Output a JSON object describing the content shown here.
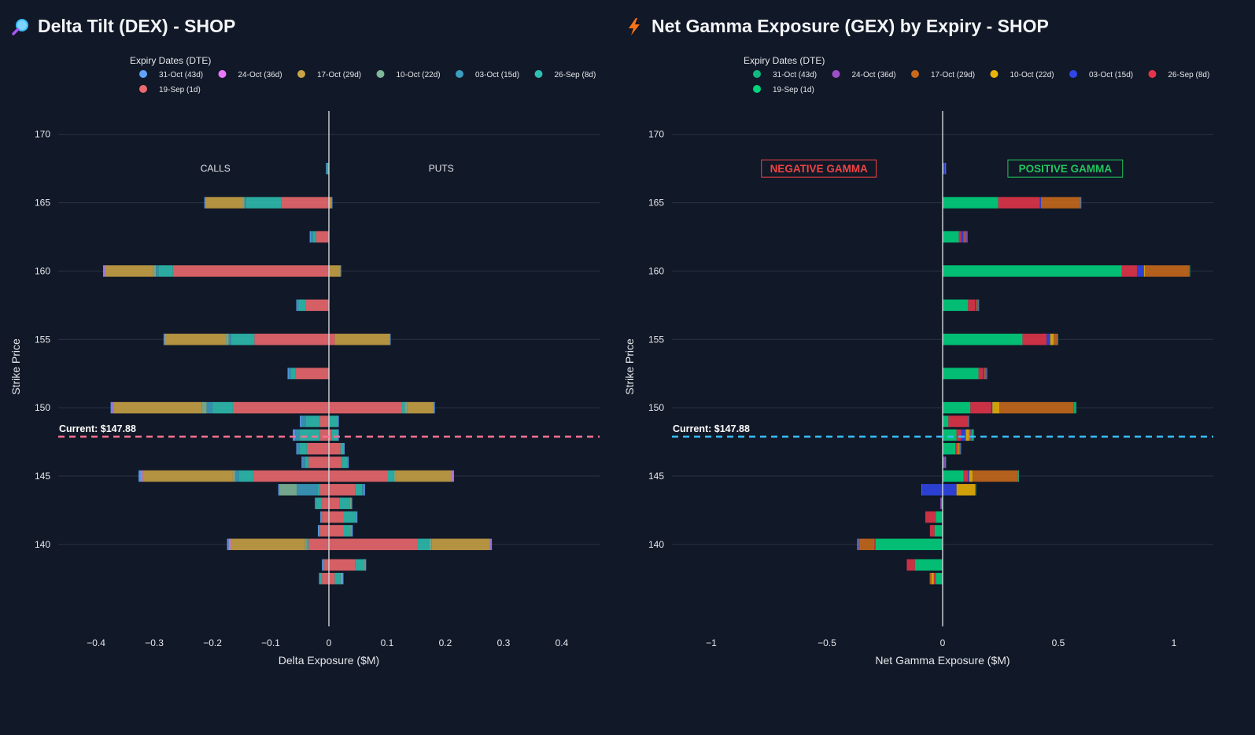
{
  "background": "#111827",
  "chart_data": [
    {
      "type": "bar",
      "orientation": "horizontal",
      "barmode": "relative",
      "title": "Delta Tilt (DEX) - SHOP",
      "title_icon": "magnifier-icon",
      "xlabel": "Delta Exposure ($M)",
      "ylabel": "Strike Price",
      "xlim": [
        -0.465,
        0.465
      ],
      "ylim": [
        134,
        172
      ],
      "x_ticks": [
        -0.4,
        -0.3,
        -0.2,
        -0.1,
        0,
        0.1,
        0.2,
        0.3,
        0.4
      ],
      "x_tick_labels": [
        "−0.4",
        "−0.3",
        "−0.2",
        "−0.1",
        "0",
        "0.1",
        "0.2",
        "0.3",
        "0.4"
      ],
      "y_ticks": [
        140,
        145,
        150,
        155,
        160,
        165,
        170
      ],
      "legend_title": "Expiry Dates (DTE)",
      "legend_placement": "top",
      "annotations": [
        {
          "text": "CALLS",
          "x": -0.195,
          "y": 167.5
        },
        {
          "text": "PUTS",
          "x": 0.193,
          "y": 167.5
        }
      ],
      "current_price": {
        "value": 147.88,
        "label": "Current: $147.88",
        "color": "#f87191"
      },
      "strikes": [
        137.5,
        138.5,
        140,
        141,
        142,
        143,
        144,
        145,
        146,
        147,
        148,
        149,
        150,
        152.5,
        155,
        157.5,
        160,
        162.5,
        165,
        167.5
      ],
      "series": [
        {
          "name": "19-Sep (1d)",
          "color": "#ef6a6f",
          "neg": [
            -0.012,
            -0.008,
            -0.035,
            -0.015,
            -0.012,
            -0.012,
            -0.015,
            -0.13,
            -0.035,
            -0.038,
            -0.015,
            -0.015,
            -0.165,
            -0.058,
            -0.128,
            -0.04,
            -0.268,
            -0.022,
            -0.082,
            0
          ],
          "pos": [
            0.01,
            0.045,
            0.152,
            0.025,
            0.025,
            0.018,
            0.045,
            0.1,
            0.022,
            0.02,
            0.005,
            0,
            0.125,
            0,
            0.01,
            0,
            0,
            0,
            0,
            0
          ]
        },
        {
          "name": "26-Sep (8d)",
          "color": "#2fbfb1",
          "neg": [
            -0.003,
            -0.002,
            -0.003,
            -0.002,
            -0.002,
            -0.01,
            -0.005,
            -0.025,
            -0.006,
            -0.012,
            -0.035,
            -0.025,
            -0.035,
            -0.008,
            -0.04,
            -0.012,
            -0.025,
            -0.006,
            -0.06,
            -0.004
          ],
          "pos": [
            0.01,
            0.015,
            0.02,
            0.012,
            0.022,
            0.018,
            0.012,
            0.012,
            0.01,
            0.005,
            0.01,
            0.015,
            0.005,
            0,
            0,
            0,
            0,
            0,
            0,
            0
          ]
        },
        {
          "name": "03-Oct (15d)",
          "color": "#3b9dc0",
          "neg": [
            0,
            0,
            0,
            0,
            0,
            0,
            -0.035,
            -0.006,
            -0.004,
            -0.004,
            -0.008,
            -0.008,
            -0.01,
            -0.003,
            -0.004,
            -0.002,
            -0.004,
            -0.003,
            -0.003,
            0
          ],
          "pos": [
            0,
            0,
            0,
            0,
            0,
            0,
            0.003,
            0,
            0,
            0,
            0,
            0,
            0,
            0,
            0,
            0,
            0,
            0,
            0,
            0
          ]
        },
        {
          "name": "10-Oct (22d)",
          "color": "#7fb89a",
          "neg": [
            0,
            0,
            -0.003,
            0,
            0,
            0,
            -0.03,
            -0.004,
            0,
            0,
            0,
            0,
            -0.008,
            0,
            -0.005,
            0,
            -0.005,
            0,
            -0.003,
            0
          ],
          "pos": [
            0.003,
            0.002,
            0.004,
            0.002,
            0,
            0.002,
            0,
            0.003,
            0,
            0,
            0,
            0,
            0.005,
            0,
            0,
            0,
            0,
            0,
            0,
            0
          ]
        },
        {
          "name": "17-Oct (29d)",
          "color": "#c9a346",
          "neg": [
            0,
            0,
            -0.128,
            0,
            0,
            0,
            0,
            -0.155,
            0,
            0,
            0,
            0,
            -0.152,
            0,
            -0.105,
            0,
            -0.082,
            0,
            -0.063,
            0
          ],
          "pos": [
            0,
            0,
            0.1,
            0,
            0,
            0,
            0,
            0.095,
            0,
            0,
            0,
            0,
            0.045,
            0,
            0.095,
            0,
            0.02,
            0,
            0.005,
            0
          ]
        },
        {
          "name": "24-Oct (36d)",
          "color": "#e879f9",
          "neg": [
            0,
            0,
            -0.003,
            0,
            0,
            0,
            0,
            -0.003,
            0,
            0,
            0,
            0,
            -0.002,
            0,
            0,
            0,
            -0.002,
            0,
            -0.001,
            0
          ],
          "pos": [
            0,
            0,
            0.002,
            0,
            0,
            0,
            0,
            0.003,
            0,
            0,
            0,
            0,
            0,
            0,
            0,
            0,
            0,
            0,
            0,
            0
          ]
        },
        {
          "name": "31-Oct (43d)",
          "color": "#60a5fa",
          "neg": [
            -0.002,
            -0.002,
            -0.003,
            -0.002,
            -0.001,
            -0.002,
            -0.002,
            -0.004,
            -0.002,
            -0.002,
            -0.004,
            -0.002,
            -0.003,
            -0.002,
            -0.002,
            -0.002,
            -0.002,
            -0.002,
            -0.002,
            -0.001
          ],
          "pos": [
            0.002,
            0.002,
            0.002,
            0.002,
            0.002,
            0.002,
            0.002,
            0.002,
            0.002,
            0.002,
            0.002,
            0.002,
            0.002,
            0.001,
            0.001,
            0,
            0.001,
            0,
            0.001,
            0
          ]
        }
      ]
    },
    {
      "type": "bar",
      "orientation": "horizontal",
      "barmode": "relative",
      "title": "Net Gamma Exposure (GEX) by Expiry - SHOP",
      "title_icon": "lightning-icon",
      "xlabel": "Net Gamma Exposure ($M)",
      "ylabel": "Strike Price",
      "xlim": [
        -1.17,
        1.17
      ],
      "ylim": [
        134,
        172
      ],
      "x_ticks": [
        -1,
        -0.5,
        0,
        0.5,
        1
      ],
      "x_tick_labels": [
        "−1",
        "−0.5",
        "0",
        "0.5",
        "1"
      ],
      "y_ticks": [
        140,
        145,
        150,
        155,
        160,
        165,
        170
      ],
      "legend_title": "Expiry Dates (DTE)",
      "legend_placement": "top",
      "annotations": [
        {
          "text": "NEGATIVE GAMMA",
          "x": -0.535,
          "y": 167.5,
          "color": "#ef4444"
        },
        {
          "text": "POSITIVE GAMMA",
          "x": 0.53,
          "y": 167.5,
          "color": "#22c55e"
        }
      ],
      "current_price": {
        "value": 147.88,
        "label": "Current: $147.88",
        "color": "#38bdf8"
      },
      "strikes": [
        137.5,
        138.5,
        140,
        141,
        142,
        143,
        144,
        145,
        146,
        147,
        148,
        149,
        150,
        152.5,
        155,
        157.5,
        160,
        162.5,
        165,
        167.5
      ],
      "series": [
        {
          "name": "19-Sep (1d)",
          "color": "#00d47e",
          "neg": [
            -0.03,
            -0.12,
            -0.29,
            -0.035,
            -0.03,
            -0.005,
            0,
            0,
            0,
            0,
            0,
            0,
            0,
            0,
            0,
            0,
            0,
            0,
            0,
            0
          ],
          "pos": [
            0,
            0,
            0,
            0,
            0,
            0,
            0,
            0.09,
            0.005,
            0.055,
            0.06,
            0.025,
            0.12,
            0.155,
            0.345,
            0.11,
            0.775,
            0.07,
            0.24,
            0.005
          ]
        },
        {
          "name": "26-Sep (8d)",
          "color": "#e5344a",
          "neg": [
            -0.008,
            -0.035,
            -0.005,
            -0.02,
            -0.045,
            0,
            0,
            0,
            0,
            0,
            0,
            0,
            0,
            0,
            0,
            0,
            0,
            0,
            0,
            0
          ],
          "pos": [
            0,
            0,
            0,
            0,
            0,
            0,
            0,
            0.02,
            0,
            0.01,
            0.02,
            0.085,
            0.09,
            0.02,
            0.105,
            0.03,
            0.065,
            0.01,
            0.18,
            0
          ]
        },
        {
          "name": "03-Oct (15d)",
          "color": "#2f46e8",
          "neg": [
            0,
            0,
            0,
            0,
            0,
            0,
            -0.09,
            0,
            0,
            0,
            0,
            0,
            0,
            0,
            0,
            0,
            0,
            0,
            0,
            0
          ],
          "pos": [
            0,
            0,
            0,
            0,
            0,
            0,
            0.06,
            0.005,
            0,
            0,
            0.02,
            0,
            0.005,
            0.005,
            0.015,
            0.005,
            0.03,
            0.01,
            0.005,
            0.005
          ]
        },
        {
          "name": "10-Oct (22d)",
          "color": "#eab308",
          "neg": [
            -0.01,
            0,
            0,
            0,
            0,
            0,
            0,
            0,
            0,
            0,
            0,
            0,
            0,
            0,
            0,
            0,
            0,
            0,
            0,
            0
          ],
          "pos": [
            0,
            0,
            0,
            0,
            0,
            0,
            0.08,
            0.015,
            0,
            0.005,
            0.015,
            0,
            0.03,
            0,
            0.015,
            0,
            0.005,
            0,
            0,
            0
          ]
        },
        {
          "name": "17-Oct (29d)",
          "color": "#c96a1b",
          "neg": [
            -0.008,
            0,
            -0.065,
            0,
            0,
            0,
            0,
            0,
            0,
            0,
            0,
            0,
            0,
            0,
            0,
            0,
            0,
            0,
            0,
            0
          ],
          "pos": [
            0,
            0,
            0,
            0,
            0,
            0,
            0,
            0.195,
            0,
            0.005,
            0.005,
            0,
            0.32,
            0.005,
            0.015,
            0.005,
            0.19,
            0.005,
            0.17,
            0
          ]
        },
        {
          "name": "24-Oct (36d)",
          "color": "#9b4fc8",
          "neg": [
            0,
            0,
            -0.005,
            0,
            0,
            -0.005,
            0,
            0,
            0,
            0,
            0,
            0,
            0,
            0,
            0,
            0,
            0,
            0,
            0,
            0
          ],
          "pos": [
            0,
            0,
            0,
            0,
            0,
            0,
            0,
            0.002,
            0.005,
            0.002,
            0.005,
            0.002,
            0.003,
            0.005,
            0.002,
            0.005,
            0.002,
            0.01,
            0.002,
            0.005
          ]
        },
        {
          "name": "31-Oct (43d)",
          "color": "#10b981",
          "neg": [
            0,
            0,
            -0.005,
            0,
            0,
            0,
            -0.002,
            0,
            0,
            0,
            0,
            0,
            0,
            0,
            0,
            0,
            0,
            0,
            0,
            0
          ],
          "pos": [
            0,
            0,
            0,
            0,
            0,
            0,
            0.005,
            0.003,
            0.005,
            0.002,
            0.01,
            0.002,
            0.01,
            0.002,
            0.002,
            0.002,
            0.003,
            0.002,
            0.002,
            0
          ]
        }
      ]
    }
  ]
}
